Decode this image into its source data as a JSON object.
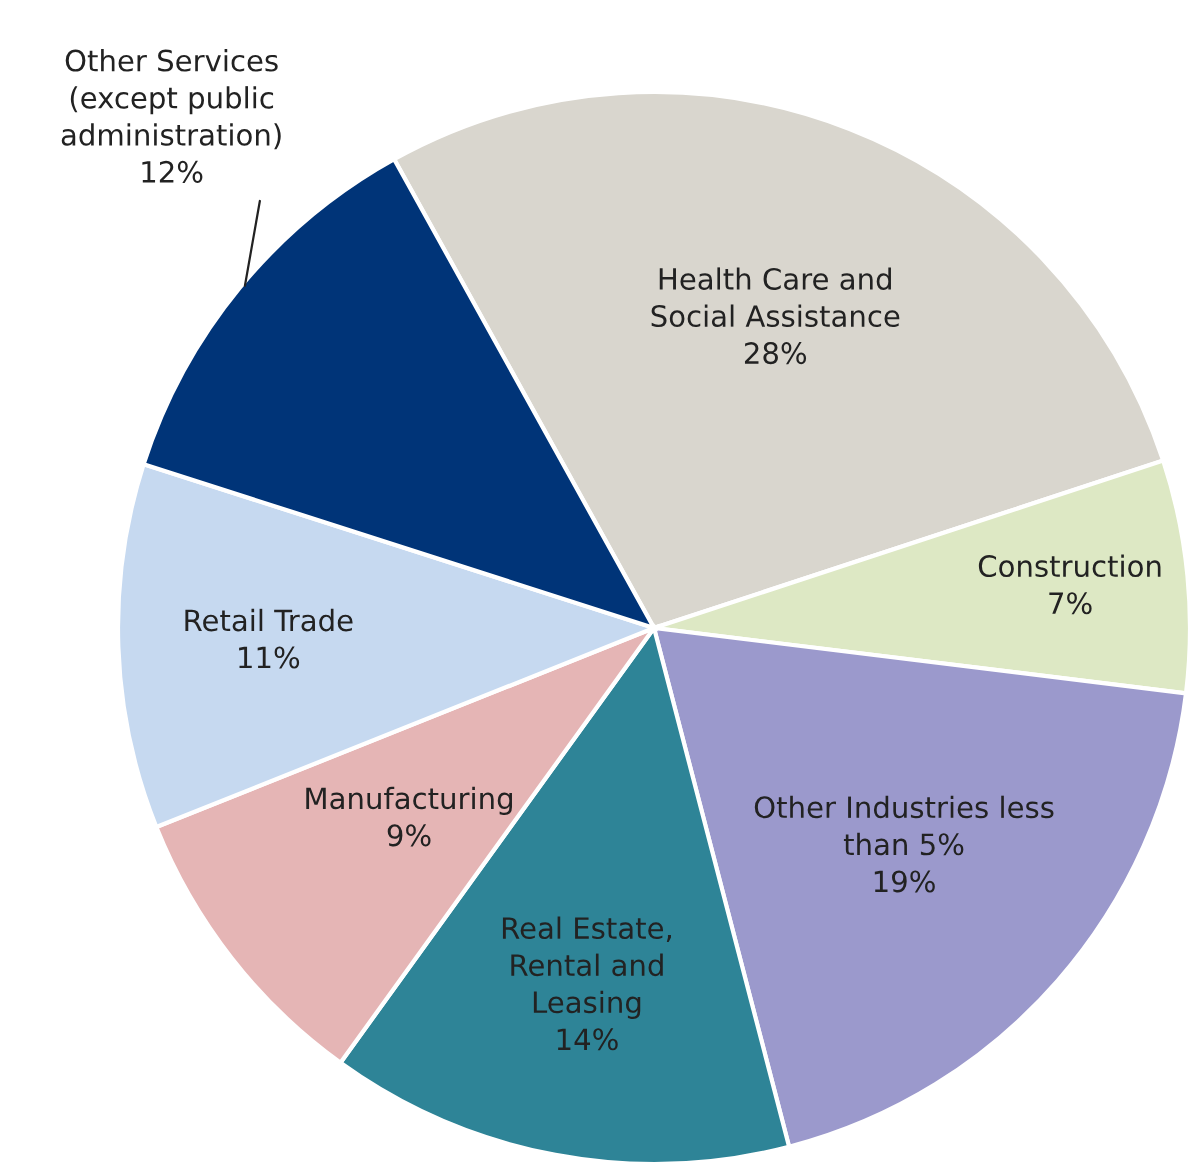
{
  "chart_data": {
    "type": "pie",
    "categories": [
      "Health Care and\nSocial Assistance",
      "Construction",
      "Other Industries less\nthan 5%",
      "Real Estate,\nRental and\nLeasing",
      "Manufacturing",
      "Retail Trade",
      "Other Services\n(except public\nadministration)"
    ],
    "values": [
      28,
      7,
      19,
      14,
      9,
      11,
      12
    ],
    "value_labels": [
      "28%",
      "7%",
      "19%",
      "14%",
      "9%",
      "11%",
      "12%"
    ],
    "colors": [
      "#d9d6ce",
      "#dde8c4",
      "#9b99cc",
      "#2e8497",
      "#e5b5b5",
      "#c6d9f0",
      "#003478"
    ],
    "legend": false
  }
}
